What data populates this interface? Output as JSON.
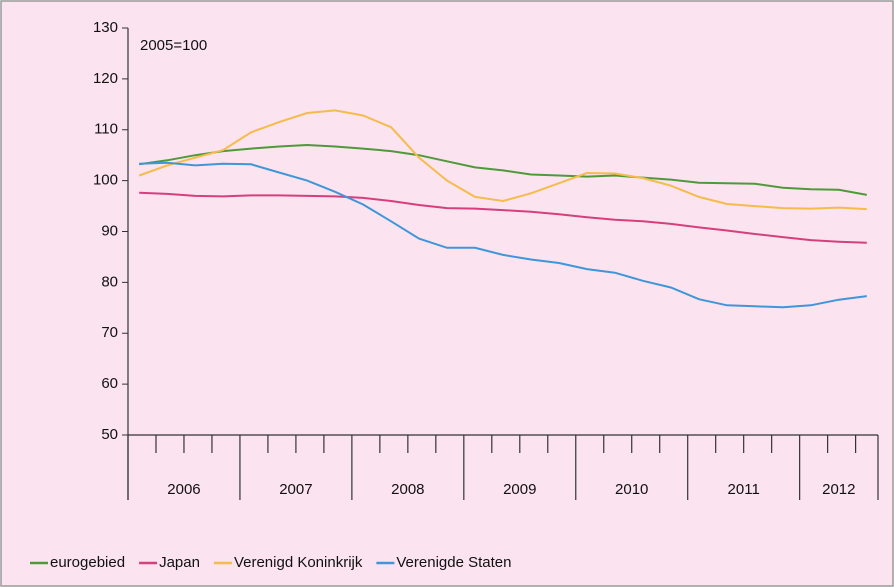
{
  "chart_data": {
    "type": "line",
    "annotation": "2005=100",
    "categories": [
      "2006",
      "2007",
      "2008",
      "2009",
      "2010",
      "2011",
      "2012"
    ],
    "x": [
      2006.1,
      2006.35,
      2006.6,
      2006.85,
      2007.1,
      2007.35,
      2007.6,
      2007.85,
      2008.1,
      2008.35,
      2008.6,
      2008.85,
      2009.1,
      2009.35,
      2009.6,
      2009.85,
      2010.1,
      2010.35,
      2010.6,
      2010.85,
      2011.1,
      2011.35,
      2011.6,
      2011.85,
      2012.1,
      2012.35,
      2012.6
    ],
    "series": [
      {
        "name": "eurogebied",
        "color": "#4e9a3a",
        "values": [
          103.2,
          104,
          105,
          105.8,
          106.3,
          106.7,
          107,
          106.7,
          106.3,
          105.8,
          105,
          103.8,
          102.6,
          102,
          101.2,
          101,
          100.8,
          101,
          100.6,
          100.2,
          99.6,
          99.5,
          99.4,
          98.6,
          98.3,
          98.2,
          97.2
        ]
      },
      {
        "name": "Japan",
        "color": "#d63f7e",
        "values": [
          97.6,
          97.4,
          97,
          96.9,
          97.1,
          97.1,
          97,
          96.9,
          96.6,
          96,
          95.2,
          94.6,
          94.5,
          94.2,
          93.9,
          93.4,
          92.8,
          92.3,
          92,
          91.5,
          90.8,
          90.2,
          89.5,
          88.9,
          88.3,
          88,
          87.8
        ]
      },
      {
        "name": "Verenigd Koninkrijk",
        "color": "#f6bb4a",
        "values": [
          101,
          103,
          104.5,
          106,
          109.5,
          111.5,
          113.3,
          113.8,
          112.8,
          110.5,
          104.5,
          100,
          96.8,
          96,
          97.5,
          99.5,
          101.5,
          101.4,
          100.5,
          99,
          96.8,
          95.4,
          95,
          94.6,
          94.5,
          94.7,
          94.4
        ]
      },
      {
        "name": "Verenigde Staten",
        "color": "#3f96d8",
        "values": [
          103.3,
          103.5,
          103,
          103.3,
          103.2,
          101.6,
          100,
          97.8,
          95.3,
          92,
          88.6,
          86.8,
          86.8,
          85.4,
          84.5,
          83.8,
          82.6,
          81.9,
          80.3,
          79,
          76.7,
          75.5,
          75.3,
          75.1,
          75.5,
          76.6,
          77.3
        ]
      }
    ],
    "xlim": [
      2006,
      2012.7
    ],
    "xticks": [
      2006,
      2007,
      2008,
      2009,
      2010,
      2011,
      2012
    ],
    "xminorticks": [
      2006.25,
      2006.5,
      2006.75,
      2007.25,
      2007.5,
      2007.75,
      2008.25,
      2008.5,
      2008.75,
      2009.25,
      2009.5,
      2009.75,
      2010.25,
      2010.5,
      2010.75,
      2011.25,
      2011.5,
      2011.75,
      2012.25,
      2012.5
    ],
    "ylim": [
      50,
      130
    ],
    "yticks": [
      50,
      60,
      70,
      80,
      90,
      100,
      110,
      120,
      130
    ],
    "grid": false,
    "legend": "bottom"
  }
}
